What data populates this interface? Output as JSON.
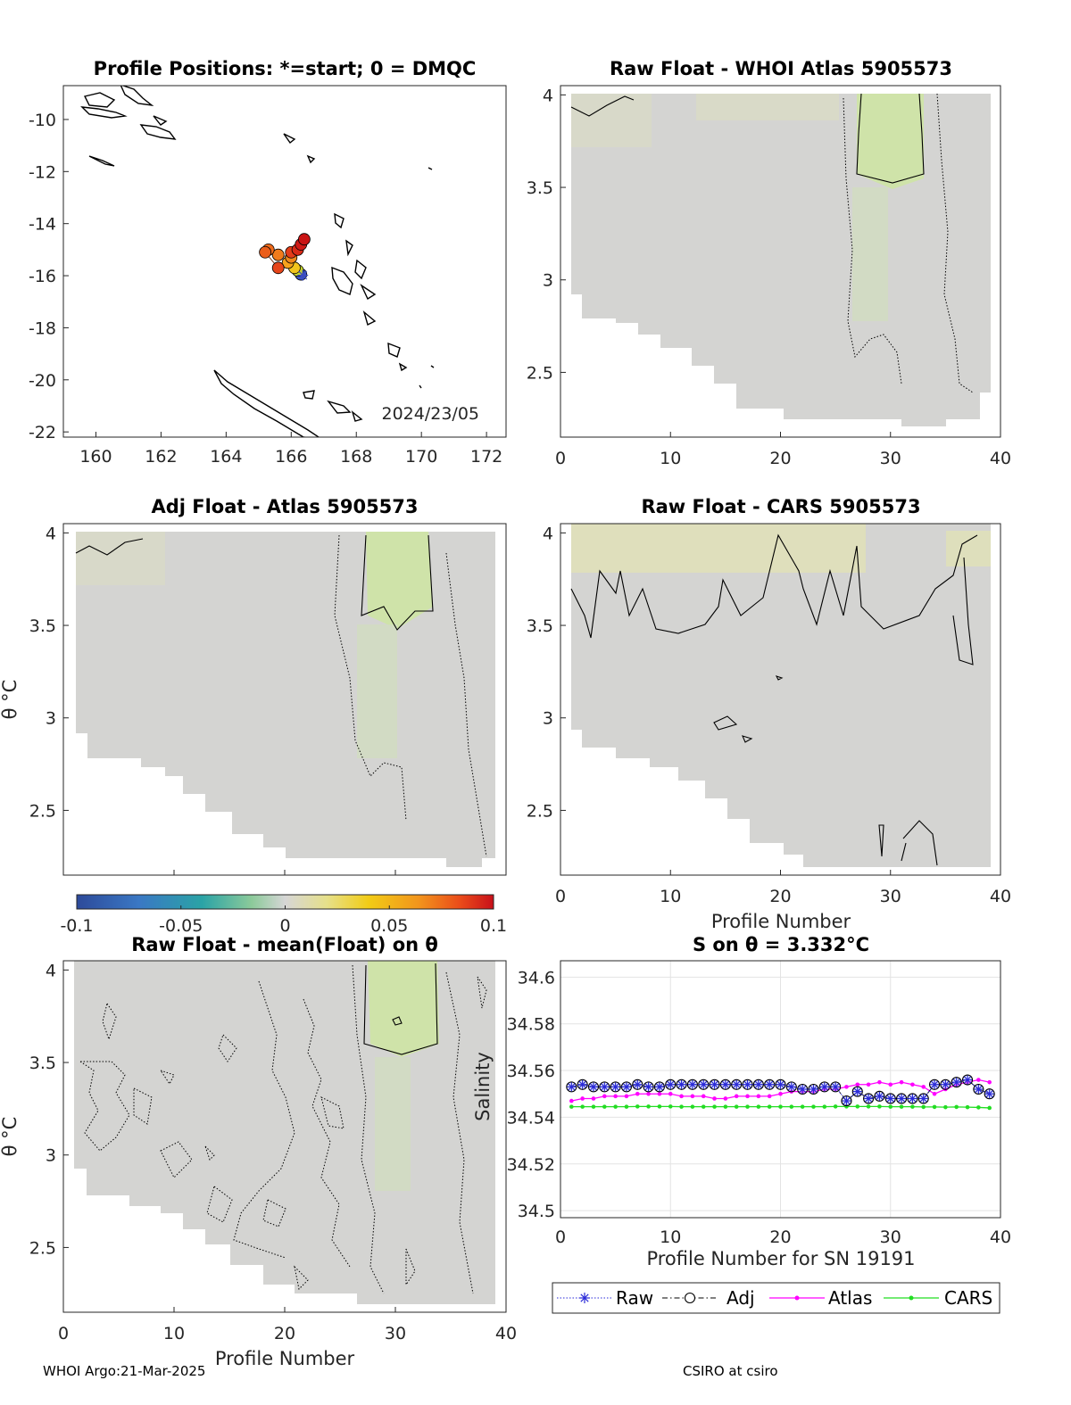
{
  "footer": {
    "left": "WHOI Argo:21-Mar-2025",
    "right": "CSIRO at csiro"
  },
  "colorbar": {
    "ticks": [
      "-0.1",
      "-0.05",
      "0",
      "0.05",
      "0.1"
    ],
    "range": [
      -0.1,
      0.1
    ]
  },
  "chart_data": [
    {
      "type": "scatter",
      "title": "Profile Positions: *=start; 0 = DMQC",
      "date_label": "2024/23/05",
      "xlim": [
        159,
        172.6
      ],
      "ylim": [
        -22.2,
        -8.7
      ],
      "xticks": [
        "160",
        "162",
        "164",
        "166",
        "168",
        "170",
        "172"
      ],
      "yticks": [
        "-10",
        "-12",
        "-14",
        "-16",
        "-18",
        "-20",
        "-22"
      ],
      "points": [
        {
          "lon": 166.3,
          "lat": -15.95,
          "color": "#3b55c7"
        },
        {
          "lon": 166.2,
          "lat": -15.8,
          "color": "#c9d82a"
        },
        {
          "lon": 166.1,
          "lat": -15.7,
          "color": "#f2c51d"
        },
        {
          "lon": 165.9,
          "lat": -15.5,
          "color": "#f6a21d"
        },
        {
          "lon": 166.0,
          "lat": -15.3,
          "color": "#f0881c"
        },
        {
          "lon": 165.6,
          "lat": -15.2,
          "color": "#f07b1c"
        },
        {
          "lon": 165.3,
          "lat": -15.0,
          "color": "#ee6a1b"
        },
        {
          "lon": 165.2,
          "lat": -15.1,
          "color": "#ea5e1b"
        },
        {
          "lon": 165.6,
          "lat": -15.7,
          "color": "#e6451a"
        },
        {
          "lon": 166.0,
          "lat": -15.1,
          "color": "#e33d19"
        },
        {
          "lon": 166.2,
          "lat": -15.0,
          "color": "#d92a17"
        },
        {
          "lon": 166.3,
          "lat": -14.8,
          "color": "#cf1a16"
        },
        {
          "lon": 166.4,
          "lat": -14.6,
          "color": "#c91414"
        }
      ],
      "start_point": {
        "lon": 166.3,
        "lat": -15.95
      }
    },
    {
      "type": "heatmap",
      "title": "Raw Float - WHOI Atlas  5905573",
      "xlim": [
        0,
        40
      ],
      "ylim": [
        2.15,
        4.05
      ],
      "xticks": [
        "0",
        "10",
        "20",
        "30",
        "40"
      ],
      "yticks": [
        "2.5",
        "3",
        "3.5",
        "4"
      ]
    },
    {
      "type": "heatmap",
      "title": "Adj Float - Atlas  5905573",
      "ylabel": "θ °C",
      "xlim": [
        0,
        40
      ],
      "ylim": [
        2.15,
        4.05
      ],
      "xticks": [],
      "yticks": [
        "2.5",
        "3",
        "3.5",
        "4"
      ]
    },
    {
      "type": "heatmap",
      "title": "Raw Float - CARS  5905573",
      "xlabel": "Profile Number",
      "xlim": [
        0,
        40
      ],
      "ylim": [
        2.15,
        4.05
      ],
      "xticks": [
        "0",
        "10",
        "20",
        "30",
        "40"
      ],
      "yticks": [
        "2.5",
        "3",
        "3.5",
        "4"
      ]
    },
    {
      "type": "heatmap",
      "title": "Raw Float - mean(Float) on θ",
      "xlabel": "Profile Number",
      "ylabel": "θ °C",
      "xlim": [
        0,
        40
      ],
      "ylim": [
        2.15,
        4.05
      ],
      "xticks": [
        "0",
        "10",
        "20",
        "30",
        "40"
      ],
      "yticks": [
        "2.5",
        "3",
        "3.5",
        "4"
      ]
    },
    {
      "type": "line",
      "title": "S on θ = 3.332°C",
      "xlabel": "Profile Number for SN 19191",
      "ylabel": "Salinity",
      "xlim": [
        0,
        40
      ],
      "ylim": [
        34.497,
        34.607
      ],
      "xticks": [
        "0",
        "10",
        "20",
        "30",
        "40"
      ],
      "yticks": [
        "34.5",
        "34.52",
        "34.54",
        "34.56",
        "34.58",
        "34.6"
      ],
      "x": [
        1,
        2,
        3,
        4,
        5,
        6,
        7,
        8,
        9,
        10,
        11,
        12,
        13,
        14,
        15,
        16,
        17,
        18,
        19,
        20,
        21,
        22,
        23,
        24,
        25,
        26,
        27,
        28,
        29,
        30,
        31,
        32,
        33,
        34,
        35,
        36,
        37,
        38,
        39
      ],
      "series": [
        {
          "name": "Raw",
          "color": "#2a2ad8",
          "values": [
            34.553,
            34.554,
            34.553,
            34.553,
            34.553,
            34.553,
            34.554,
            34.553,
            34.553,
            34.554,
            34.554,
            34.554,
            34.554,
            34.554,
            34.554,
            34.554,
            34.554,
            34.554,
            34.554,
            34.554,
            34.553,
            34.552,
            34.552,
            34.553,
            34.553,
            34.547,
            34.551,
            34.548,
            34.549,
            34.548,
            34.548,
            34.548,
            34.548,
            34.554,
            34.554,
            34.555,
            34.556,
            34.552,
            34.55
          ]
        },
        {
          "name": "Adj",
          "color": "#000000",
          "values": [
            34.553,
            34.554,
            34.553,
            34.553,
            34.553,
            34.553,
            34.554,
            34.553,
            34.553,
            34.554,
            34.554,
            34.554,
            34.554,
            34.554,
            34.554,
            34.554,
            34.554,
            34.554,
            34.554,
            34.554,
            34.553,
            34.552,
            34.552,
            34.553,
            34.553,
            34.547,
            34.551,
            34.548,
            34.549,
            34.548,
            34.548,
            34.548,
            34.548,
            34.554,
            34.554,
            34.555,
            34.556,
            34.552,
            34.55
          ]
        },
        {
          "name": "Atlas",
          "color": "#ff00ff",
          "values": [
            34.547,
            34.548,
            34.548,
            34.549,
            34.549,
            34.549,
            34.55,
            34.55,
            34.55,
            34.55,
            34.549,
            34.549,
            34.549,
            34.548,
            34.548,
            34.549,
            34.549,
            34.549,
            34.549,
            34.55,
            34.551,
            34.551,
            34.551,
            34.552,
            34.552,
            34.553,
            34.554,
            34.554,
            34.555,
            34.554,
            34.555,
            34.554,
            34.553,
            34.55,
            34.552,
            34.554,
            34.555,
            34.556,
            34.555
          ]
        },
        {
          "name": "CARS",
          "color": "#22dd22",
          "values": [
            34.5445,
            34.5445,
            34.5445,
            34.5445,
            34.5445,
            34.5445,
            34.5446,
            34.5446,
            34.5446,
            34.5446,
            34.5445,
            34.5445,
            34.5445,
            34.5445,
            34.5445,
            34.5445,
            34.5445,
            34.5445,
            34.5445,
            34.5445,
            34.5445,
            34.5445,
            34.5445,
            34.5445,
            34.5446,
            34.5446,
            34.5446,
            34.5446,
            34.5446,
            34.5445,
            34.5445,
            34.5445,
            34.5444,
            34.5444,
            34.5443,
            34.5444,
            34.5443,
            34.5442,
            34.544
          ]
        }
      ]
    }
  ]
}
